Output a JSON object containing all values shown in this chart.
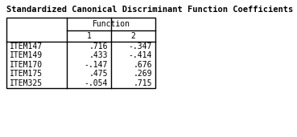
{
  "title": "Standardized Canonical Discriminant Function Coefficients",
  "col_header_top": "Function",
  "col_headers": [
    "1",
    "2"
  ],
  "row_labels": [
    "ITEM147",
    "ITEM149",
    "ITEM170",
    "ITEM175",
    "ITEM325"
  ],
  "values": [
    [
      ".716",
      "-.347"
    ],
    [
      ".433",
      "-.414"
    ],
    [
      "-.147",
      ".676"
    ],
    [
      ".475",
      ".269"
    ],
    [
      "-.054",
      ".715"
    ]
  ],
  "bg_color": "#ffffff",
  "title_fontsize": 7.5,
  "table_fontsize": 7.0,
  "font_family": "monospace"
}
